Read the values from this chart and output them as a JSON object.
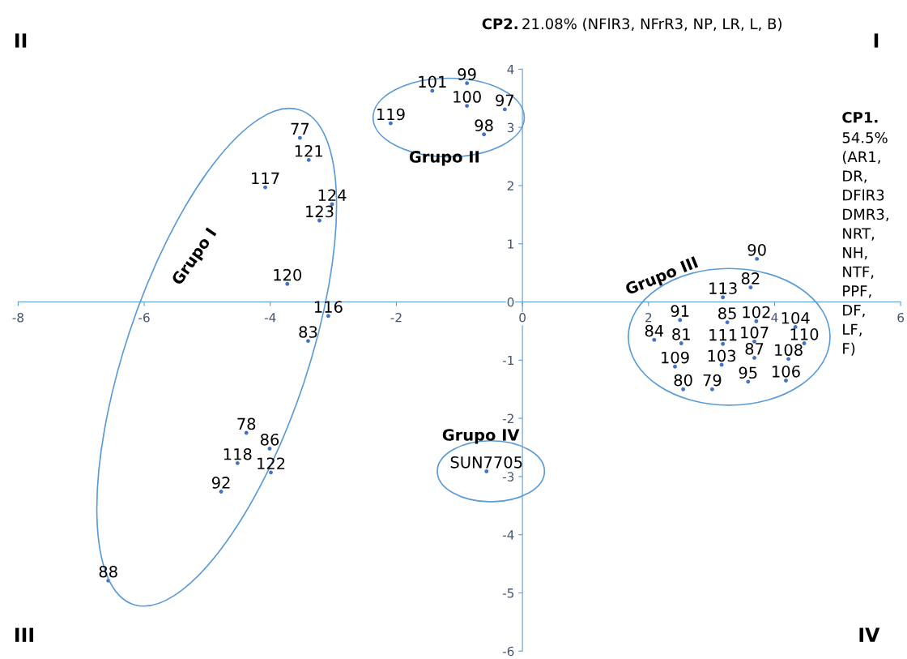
{
  "chart_data": {
    "type": "scatter",
    "ylabel": "CP2. 21.08% (NFlR3, NFrR3, NP, LR, L, B)",
    "xlabel": "CP1. 54.5% (AR1, DR, DFlR3 DMR3, NRT, NH, NTF, PPF, DF, LF, F)",
    "xlim": [
      -8,
      6
    ],
    "xticks": [
      -8,
      -6,
      -4,
      -2,
      0,
      2,
      4,
      6
    ],
    "ylim": [
      -6,
      4
    ],
    "yticks": [
      -6,
      -5,
      -4,
      -3,
      -2,
      -1,
      0,
      1,
      2,
      3,
      4
    ],
    "grid": false,
    "marker": "circle",
    "x": [
      -1.43,
      -0.88,
      -0.88,
      -0.28,
      -2.09,
      -0.61,
      -3.53,
      -3.39,
      -4.08,
      -3.02,
      -3.22,
      -3.73,
      -3.08,
      -3.4,
      -4.38,
      -4.01,
      -4.52,
      -3.99,
      -4.78,
      -6.57,
      -0.57,
      3.72,
      3.62,
      3.18,
      2.5,
      3.25,
      3.71,
      4.33,
      2.09,
      2.52,
      3.18,
      3.68,
      4.47,
      3.68,
      4.22,
      2.42,
      3.16,
      2.55,
      3.01,
      3.58,
      4.18
    ],
    "values": [
      3.63,
      3.76,
      3.37,
      3.31,
      3.07,
      2.88,
      2.82,
      2.44,
      1.97,
      1.68,
      1.4,
      0.31,
      -0.24,
      -0.67,
      -2.25,
      -2.52,
      -2.77,
      -2.93,
      -3.26,
      -4.79,
      -2.91,
      0.74,
      0.25,
      0.08,
      -0.31,
      -0.35,
      -0.33,
      -0.43,
      -0.65,
      -0.71,
      -0.72,
      -0.68,
      -0.71,
      -0.96,
      -0.98,
      -1.11,
      -1.08,
      -1.5,
      -1.5,
      -1.37,
      -1.35
    ],
    "annotations": [
      {
        "text": "101",
        "x": -1.43,
        "y": 3.63
      },
      {
        "text": "99",
        "x": -0.88,
        "y": 3.76
      },
      {
        "text": "100",
        "x": -0.88,
        "y": 3.37
      },
      {
        "text": "97",
        "x": -0.28,
        "y": 3.31
      },
      {
        "text": "119",
        "x": -2.09,
        "y": 3.07
      },
      {
        "text": "98",
        "x": -0.61,
        "y": 2.88
      },
      {
        "text": "77",
        "x": -3.53,
        "y": 2.82
      },
      {
        "text": "121",
        "x": -3.39,
        "y": 2.44
      },
      {
        "text": "117",
        "x": -4.08,
        "y": 1.97
      },
      {
        "text": "124",
        "x": -3.02,
        "y": 1.68
      },
      {
        "text": "123",
        "x": -3.22,
        "y": 1.4
      },
      {
        "text": "120",
        "x": -3.73,
        "y": 0.31
      },
      {
        "text": "116",
        "x": -3.08,
        "y": -0.24
      },
      {
        "text": "83",
        "x": -3.4,
        "y": -0.67
      },
      {
        "text": "78",
        "x": -4.38,
        "y": -2.25
      },
      {
        "text": "86",
        "x": -4.01,
        "y": -2.52
      },
      {
        "text": "118",
        "x": -4.52,
        "y": -2.77
      },
      {
        "text": "122",
        "x": -3.99,
        "y": -2.93
      },
      {
        "text": "92",
        "x": -4.78,
        "y": -3.26
      },
      {
        "text": "88",
        "x": -6.57,
        "y": -4.79
      },
      {
        "text": "SUN7705",
        "x": -0.57,
        "y": -2.91
      },
      {
        "text": "90",
        "x": 3.72,
        "y": 0.74
      },
      {
        "text": "82",
        "x": 3.62,
        "y": 0.25
      },
      {
        "text": "113",
        "x": 3.18,
        "y": 0.08
      },
      {
        "text": "91",
        "x": 2.5,
        "y": -0.31
      },
      {
        "text": "85",
        "x": 3.25,
        "y": -0.35
      },
      {
        "text": "102",
        "x": 3.71,
        "y": -0.33
      },
      {
        "text": "104",
        "x": 4.33,
        "y": -0.43
      },
      {
        "text": "84",
        "x": 2.09,
        "y": -0.65
      },
      {
        "text": "81",
        "x": 2.52,
        "y": -0.71
      },
      {
        "text": "111",
        "x": 3.18,
        "y": -0.72
      },
      {
        "text": "107",
        "x": 3.68,
        "y": -0.68
      },
      {
        "text": "110",
        "x": 4.47,
        "y": -0.71
      },
      {
        "text": "87",
        "x": 3.68,
        "y": -0.96
      },
      {
        "text": "108",
        "x": 4.22,
        "y": -0.98
      },
      {
        "text": "109",
        "x": 2.42,
        "y": -1.11
      },
      {
        "text": "103",
        "x": 3.16,
        "y": -1.08
      },
      {
        "text": "80",
        "x": 2.55,
        "y": -1.5
      },
      {
        "text": "79",
        "x": 3.01,
        "y": -1.5
      },
      {
        "text": "95",
        "x": 3.58,
        "y": -1.37
      },
      {
        "text": "106",
        "x": 4.18,
        "y": -1.35
      },
      "Grupo I",
      "Grupo II",
      "Grupo III",
      "Grupo IV",
      "I",
      "II",
      "III",
      "IV"
    ]
  }
}
